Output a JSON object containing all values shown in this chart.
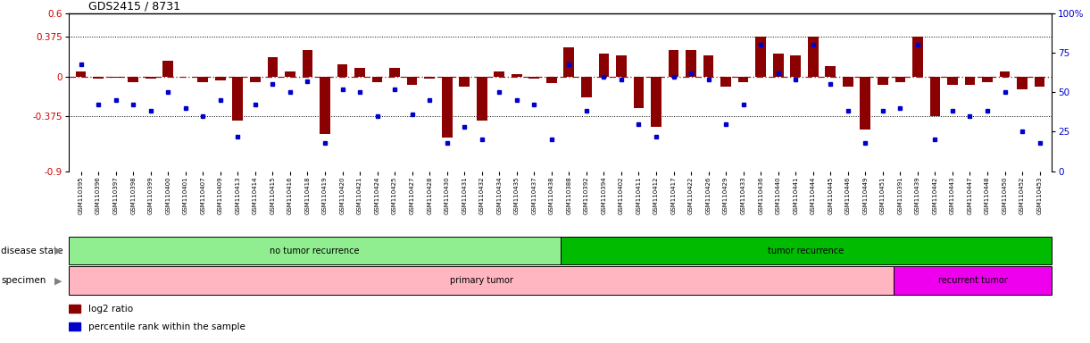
{
  "title": "GDS2415 / 8731",
  "samples": [
    "GSM110395",
    "GSM110396",
    "GSM110397",
    "GSM110398",
    "GSM110399",
    "GSM110400",
    "GSM110401",
    "GSM110407",
    "GSM110409",
    "GSM110413",
    "GSM110414",
    "GSM110415",
    "GSM110416",
    "GSM110418",
    "GSM110419",
    "GSM110420",
    "GSM110421",
    "GSM110424",
    "GSM110425",
    "GSM110427",
    "GSM110428",
    "GSM110430",
    "GSM110431",
    "GSM110432",
    "GSM110434",
    "GSM110435",
    "GSM110437",
    "GSM110438",
    "GSM110388",
    "GSM110392",
    "GSM110394",
    "GSM110402",
    "GSM110411",
    "GSM110412",
    "GSM110417",
    "GSM110422",
    "GSM110426",
    "GSM110429",
    "GSM110433",
    "GSM110436",
    "GSM110440",
    "GSM110441",
    "GSM110444",
    "GSM110445",
    "GSM110446",
    "GSM110449",
    "GSM110451",
    "GSM110391",
    "GSM110439",
    "GSM110442",
    "GSM110443",
    "GSM110447",
    "GSM110448",
    "GSM110450",
    "GSM110452",
    "GSM110453"
  ],
  "log2_ratio": [
    0.05,
    -0.02,
    -0.01,
    -0.05,
    -0.02,
    0.15,
    0.0,
    -0.05,
    -0.04,
    -0.42,
    -0.05,
    0.18,
    0.05,
    0.25,
    -0.55,
    0.12,
    0.08,
    -0.05,
    0.08,
    -0.08,
    -0.02,
    -0.58,
    -0.1,
    -0.42,
    0.05,
    0.02,
    -0.02,
    -0.06,
    0.28,
    -0.2,
    0.22,
    0.2,
    -0.3,
    -0.48,
    0.25,
    0.25,
    0.2,
    -0.1,
    -0.05,
    0.38,
    0.22,
    0.2,
    0.38,
    0.1,
    -0.1,
    -0.5,
    -0.08,
    -0.05,
    0.38,
    -0.38,
    -0.08,
    -0.08,
    -0.05,
    0.05,
    -0.12,
    -0.1
  ],
  "percentile_rank": [
    68,
    42,
    45,
    42,
    38,
    50,
    40,
    35,
    45,
    22,
    42,
    55,
    50,
    57,
    18,
    52,
    50,
    35,
    52,
    36,
    45,
    18,
    28,
    20,
    50,
    45,
    42,
    20,
    68,
    38,
    60,
    58,
    30,
    22,
    60,
    62,
    58,
    30,
    42,
    80,
    62,
    58,
    80,
    55,
    38,
    18,
    38,
    40,
    80,
    20,
    38,
    35,
    38,
    50,
    25,
    18
  ],
  "no_recurrence_count": 28,
  "recurrence_count": 28,
  "primary_tumor_count": 47,
  "recurrent_tumor_count": 9,
  "bar_color": "#8B0000",
  "dot_color": "#0000CD",
  "zero_line_color": "#8B0000",
  "bg_color": "#ffffff",
  "no_recur_color": "#90EE90",
  "recur_color": "#00BB00",
  "primary_color": "#FFB6C1",
  "recurrent_color": "#EE00EE",
  "legend_items": [
    "log2 ratio",
    "percentile rank within the sample"
  ]
}
